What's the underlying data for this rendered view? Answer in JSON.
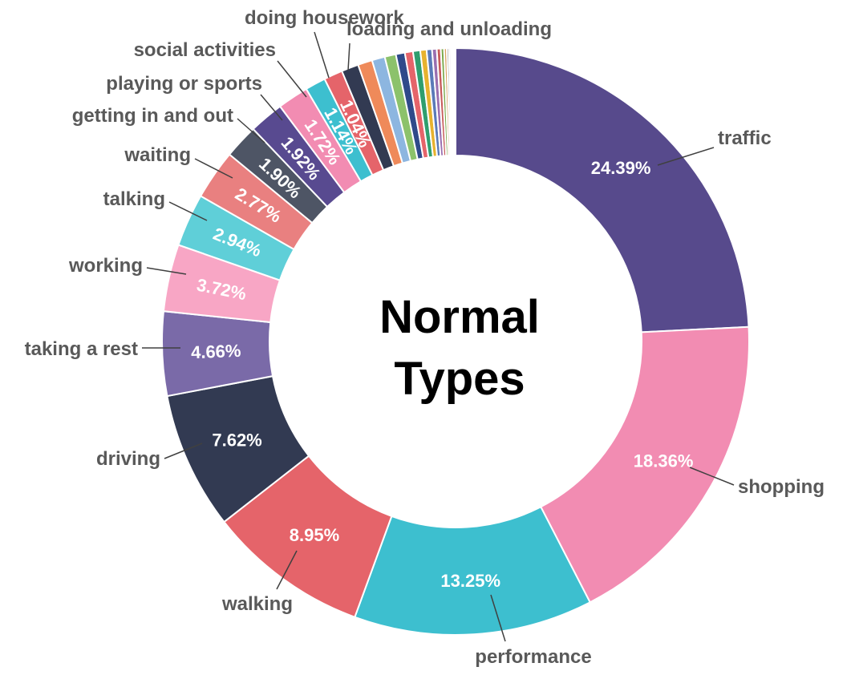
{
  "chart_data": {
    "type": "pie",
    "variant": "donut",
    "title": "Normal Types",
    "title_lines": [
      "Normal",
      "Types"
    ],
    "legend": "none",
    "slices": [
      {
        "label": "traffic",
        "value": 24.39,
        "value_label": "24.39%",
        "color": "#574a8c"
      },
      {
        "label": "shopping",
        "value": 18.36,
        "value_label": "18.36%",
        "color": "#f28cb2"
      },
      {
        "label": "performance",
        "value": 13.25,
        "value_label": "13.25%",
        "color": "#3dbfcf"
      },
      {
        "label": "walking",
        "value": 8.95,
        "value_label": "8.95%",
        "color": "#e5646a"
      },
      {
        "label": "driving",
        "value": 7.62,
        "value_label": "7.62%",
        "color": "#323a52"
      },
      {
        "label": "taking a rest",
        "value": 4.66,
        "value_label": "4.66%",
        "color": "#7a6aa8"
      },
      {
        "label": "working",
        "value": 3.72,
        "value_label": "3.72%",
        "color": "#f8a6c5"
      },
      {
        "label": "talking",
        "value": 2.94,
        "value_label": "2.94%",
        "color": "#5fcfd8"
      },
      {
        "label": "waiting",
        "value": 2.77,
        "value_label": "2.77%",
        "color": "#e98080"
      },
      {
        "label": "getting in and out",
        "value": 1.9,
        "value_label": "1.90%",
        "color": "#4e5565"
      },
      {
        "label": "playing or sports",
        "value": 1.92,
        "value_label": "1.92%",
        "color": "#584a90"
      },
      {
        "label": "social activities",
        "value": 1.72,
        "value_label": "1.72%",
        "color": "#f28cb2"
      },
      {
        "label": "doing housework",
        "value": 1.14,
        "value_label": "1.14%",
        "color": "#3dbfcf"
      },
      {
        "label": "loading and unloading",
        "value": 1.04,
        "value_label": "1.04%",
        "color": "#e5646a"
      },
      {
        "label": "",
        "value": 0.95,
        "value_label": "",
        "color": "#323a52"
      },
      {
        "label": "",
        "value": 0.8,
        "value_label": "",
        "color": "#ef8a5a"
      },
      {
        "label": "",
        "value": 0.72,
        "value_label": "",
        "color": "#8db6e0"
      },
      {
        "label": "",
        "value": 0.62,
        "value_label": "",
        "color": "#8cc26b"
      },
      {
        "label": "",
        "value": 0.5,
        "value_label": "",
        "color": "#2f4a8a"
      },
      {
        "label": "",
        "value": 0.45,
        "value_label": "",
        "color": "#e5646a"
      },
      {
        "label": "",
        "value": 0.4,
        "value_label": "",
        "color": "#2f9e6e"
      },
      {
        "label": "",
        "value": 0.35,
        "value_label": "",
        "color": "#e7b22e"
      },
      {
        "label": "",
        "value": 0.3,
        "value_label": "",
        "color": "#5a7ab8"
      },
      {
        "label": "",
        "value": 0.26,
        "value_label": "",
        "color": "#9a6fb0"
      },
      {
        "label": "",
        "value": 0.22,
        "value_label": "",
        "color": "#c75a5a"
      },
      {
        "label": "",
        "value": 0.18,
        "value_label": "",
        "color": "#7aa84a"
      },
      {
        "label": "",
        "value": 0.15,
        "value_label": "",
        "color": "#d9a060"
      },
      {
        "label": "",
        "value": 0.12,
        "value_label": "",
        "color": "#a0a0a0"
      },
      {
        "label": "",
        "value": 0.1,
        "value_label": "",
        "color": "#c9b0d8"
      },
      {
        "label": "",
        "value": 0.08,
        "value_label": "",
        "color": "#b8d8e8"
      },
      {
        "label": "",
        "value": 0.07,
        "value_label": "",
        "color": "#e0c0a0"
      },
      {
        "label": "",
        "value": 0.06,
        "value_label": "",
        "color": "#d0d0d0"
      },
      {
        "label": "",
        "value": 0.05,
        "value_label": "",
        "color": "#e8e0b0"
      }
    ]
  }
}
